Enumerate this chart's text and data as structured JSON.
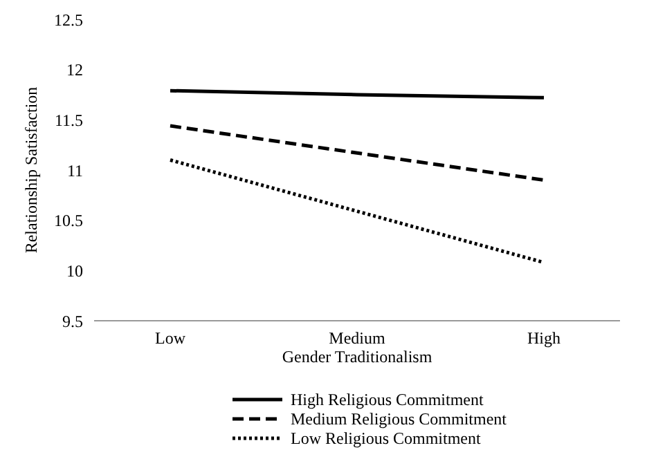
{
  "chart_data": {
    "type": "line",
    "xlabel": "Gender Traditionalism",
    "ylabel": "Relationship Satisfaction",
    "categories": [
      "Low",
      "Medium",
      "High"
    ],
    "series": [
      {
        "name": "High Religious Commitment",
        "color": "#000000",
        "line_style": "solid",
        "values": [
          11.79,
          11.75,
          11.72
        ]
      },
      {
        "name": "Medium Religious Commitment",
        "color": "#000000",
        "line_style": "dashed",
        "values": [
          11.44,
          11.17,
          10.9
        ]
      },
      {
        "name": "Low Religious Commitment",
        "color": "#000000",
        "line_style": "dotted",
        "values": [
          11.1,
          10.59,
          10.08
        ]
      }
    ],
    "ylim": [
      9.5,
      12.5
    ],
    "yticks": [
      9.5,
      10,
      10.5,
      11,
      11.5,
      12,
      12.5
    ],
    "grid": false,
    "legend": "bottom",
    "marker": "none"
  }
}
